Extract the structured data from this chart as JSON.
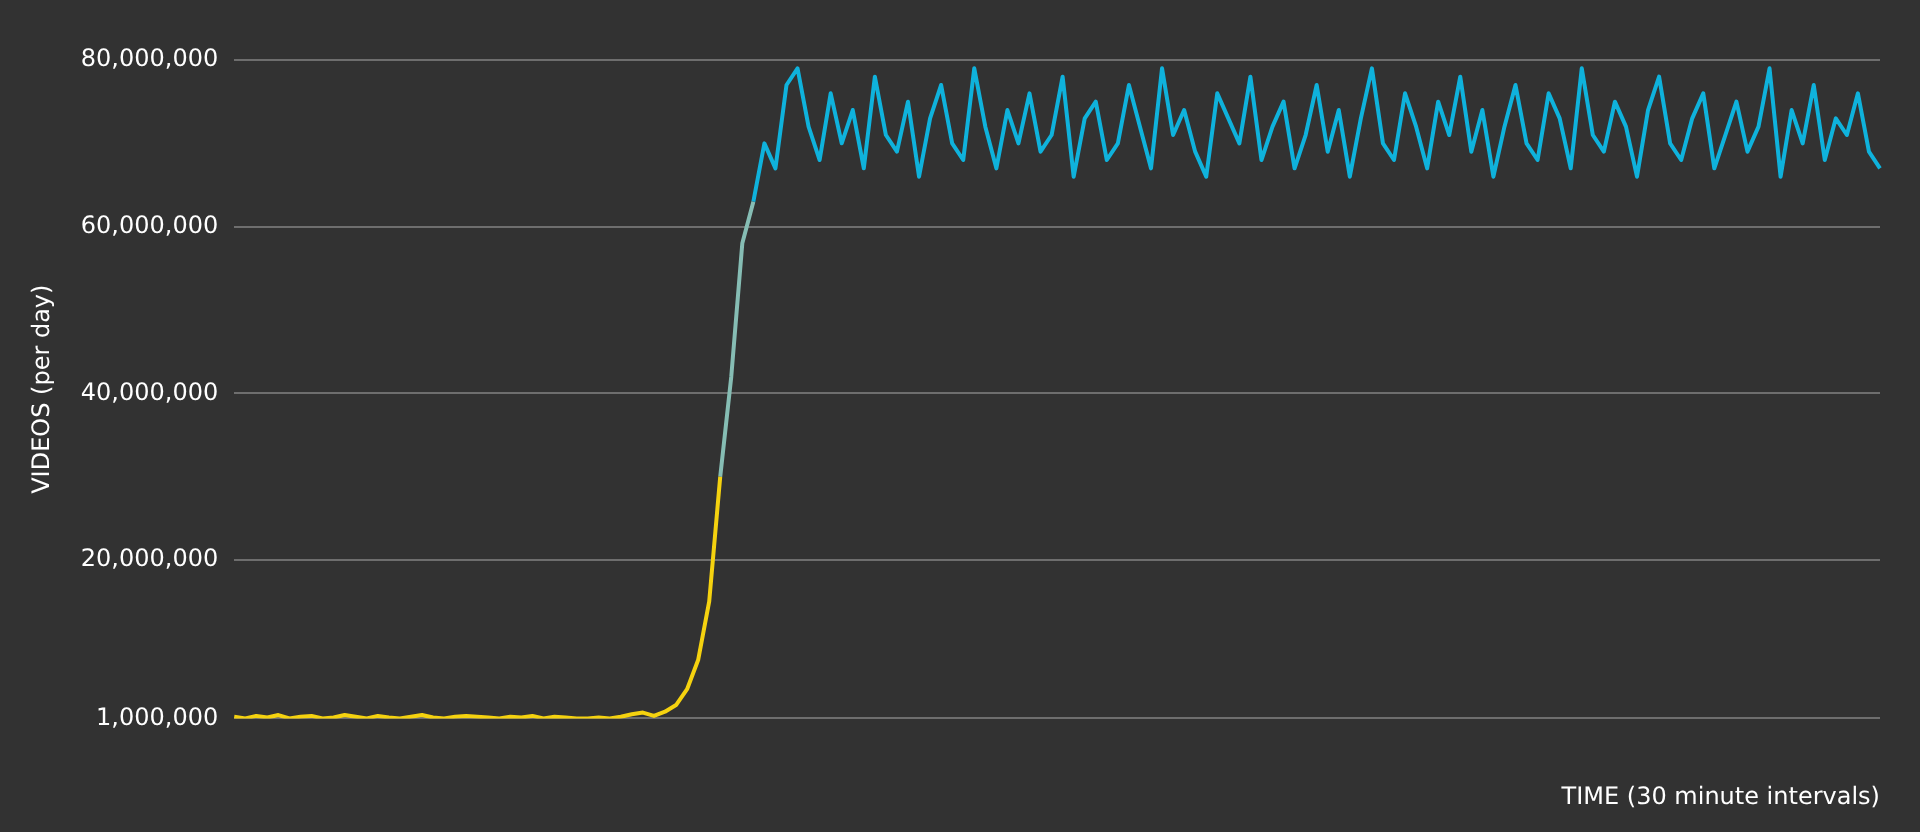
{
  "chart_data": {
    "type": "line",
    "xlabel": "TIME (30 minute intervals)",
    "ylabel": "VIDEOS (per day)",
    "categories": [
      null,
      null,
      null,
      null,
      null,
      null,
      null,
      null,
      null,
      null,
      null,
      null,
      null,
      null,
      null,
      null,
      null,
      null,
      null,
      null,
      null,
      null,
      null,
      null,
      null,
      null,
      null,
      null,
      null,
      null,
      null,
      null,
      null,
      null,
      null,
      null,
      null,
      null,
      null,
      null,
      null,
      null,
      null,
      null,
      null,
      null,
      null,
      null,
      null,
      null,
      null,
      null,
      null,
      null,
      null,
      null,
      null,
      null,
      null,
      null,
      null,
      null,
      null,
      null,
      null,
      null,
      null,
      null,
      null,
      null,
      null,
      null,
      null,
      null,
      null,
      null,
      null,
      null,
      null,
      null,
      null,
      null,
      null,
      null,
      null,
      null,
      null,
      null,
      null,
      null,
      null,
      null,
      null,
      null,
      null,
      null,
      null,
      null,
      null,
      null,
      null,
      null,
      null,
      null,
      null,
      null,
      null,
      null,
      null,
      null,
      null,
      null,
      null,
      null,
      null,
      null,
      null,
      null,
      null,
      null,
      null,
      null,
      null,
      null,
      null,
      null,
      null,
      null,
      null,
      null,
      null,
      null,
      null,
      null,
      null,
      null,
      null,
      null,
      null,
      null,
      null,
      null,
      null,
      null,
      null,
      null,
      null,
      null,
      null,
      null
    ],
    "series": [
      {
        "color": "#f5d20f",
        "values": [
          1200000,
          1000000,
          1300000,
          1100000,
          1400000,
          1000000,
          1200000,
          1300000,
          1000000,
          1100000,
          1400000,
          1200000,
          1000000,
          1300000,
          1100000,
          1000000,
          1200000,
          1400000,
          1100000,
          1000000,
          1200000,
          1300000,
          1200000,
          1100000,
          1000000,
          1200000,
          1100000,
          1300000,
          1000000,
          1200000,
          1100000,
          1000000,
          1000000,
          1100000,
          1000000,
          1200000,
          1500000,
          1700000,
          1300000,
          1800000,
          2600000,
          4500000,
          8000000,
          15000000,
          30000000,
          null,
          null,
          null,
          null,
          null,
          null,
          null,
          null,
          null,
          null,
          null,
          null,
          null,
          null,
          null,
          null,
          null,
          null,
          null,
          null,
          null,
          null,
          null,
          null,
          null,
          null,
          null,
          null,
          null,
          null,
          null,
          null,
          null,
          null,
          null,
          null,
          null,
          null,
          null,
          null,
          null,
          null,
          null,
          null,
          null,
          null,
          null,
          null,
          null,
          null,
          null,
          null,
          null,
          null,
          null,
          null,
          null,
          null,
          null,
          null,
          null,
          null,
          null,
          null,
          null,
          null,
          null,
          null,
          null,
          null,
          null,
          null,
          null,
          null,
          null,
          null,
          null,
          null,
          null,
          null,
          null,
          null,
          null,
          null,
          null,
          null,
          null,
          null,
          null,
          null,
          null,
          null,
          null,
          null,
          null,
          null,
          null,
          null,
          null,
          null,
          null,
          null,
          null,
          null,
          null
        ]
      },
      {
        "color": "#86bdb4",
        "values": [
          null,
          null,
          null,
          null,
          null,
          null,
          null,
          null,
          null,
          null,
          null,
          null,
          null,
          null,
          null,
          null,
          null,
          null,
          null,
          null,
          null,
          null,
          null,
          null,
          null,
          null,
          null,
          null,
          null,
          null,
          null,
          null,
          null,
          null,
          null,
          null,
          null,
          null,
          null,
          null,
          null,
          null,
          null,
          null,
          30000000,
          42000000,
          58000000,
          63000000,
          null,
          null,
          null,
          null,
          null,
          null,
          null,
          null,
          null,
          null,
          null,
          null,
          null,
          null,
          null,
          null,
          null,
          null,
          null,
          null,
          null,
          null,
          null,
          null,
          null,
          null,
          null,
          null,
          null,
          null,
          null,
          null,
          null,
          null,
          null,
          null,
          null,
          null,
          null,
          null,
          null,
          null,
          null,
          null,
          null,
          null,
          null,
          null,
          null,
          null,
          null,
          null,
          null,
          null,
          null,
          null,
          null,
          null,
          null,
          null,
          null,
          null,
          null,
          null,
          null,
          null,
          null,
          null,
          null,
          null,
          null,
          null,
          null,
          null,
          null,
          null,
          null,
          null,
          null,
          null,
          null,
          null,
          null,
          null,
          null,
          null,
          null,
          null,
          null,
          null,
          null,
          null,
          null,
          null,
          null,
          null,
          null,
          null,
          null,
          null,
          null,
          null
        ]
      },
      {
        "color": "#0fb2dc",
        "values": [
          null,
          null,
          null,
          null,
          null,
          null,
          null,
          null,
          null,
          null,
          null,
          null,
          null,
          null,
          null,
          null,
          null,
          null,
          null,
          null,
          null,
          null,
          null,
          null,
          null,
          null,
          null,
          null,
          null,
          null,
          null,
          null,
          null,
          null,
          null,
          null,
          null,
          null,
          null,
          null,
          null,
          null,
          null,
          null,
          null,
          null,
          null,
          63000000,
          70000000,
          67000000,
          77000000,
          79000000,
          72000000,
          68000000,
          76000000,
          70000000,
          74000000,
          67000000,
          78000000,
          71000000,
          69000000,
          75000000,
          66000000,
          73000000,
          77000000,
          70000000,
          68000000,
          79000000,
          72000000,
          67000000,
          74000000,
          70000000,
          76000000,
          69000000,
          71000000,
          78000000,
          66000000,
          73000000,
          75000000,
          68000000,
          70000000,
          77000000,
          72000000,
          67000000,
          79000000,
          71000000,
          74000000,
          69000000,
          66000000,
          76000000,
          73000000,
          70000000,
          78000000,
          68000000,
          72000000,
          75000000,
          67000000,
          71000000,
          77000000,
          69000000,
          74000000,
          66000000,
          73000000,
          79000000,
          70000000,
          68000000,
          76000000,
          72000000,
          67000000,
          75000000,
          71000000,
          78000000,
          69000000,
          74000000,
          66000000,
          72000000,
          77000000,
          70000000,
          68000000,
          76000000,
          73000000,
          67000000,
          79000000,
          71000000,
          69000000,
          75000000,
          72000000,
          66000000,
          74000000,
          78000000,
          70000000,
          68000000,
          73000000,
          76000000,
          67000000,
          71000000,
          75000000,
          69000000,
          72000000,
          79000000,
          66000000,
          74000000,
          70000000,
          77000000,
          68000000,
          73000000,
          71000000,
          76000000,
          69000000,
          67000000
        ]
      }
    ],
    "ylim": [
      1000000,
      80000000
    ],
    "yticks": [
      {
        "value": 1000000,
        "label": "1,000,000"
      },
      {
        "value": 20000000,
        "label": "20,000,000"
      },
      {
        "value": 40000000,
        "label": "40,000,000"
      },
      {
        "value": 60000000,
        "label": "60,000,000"
      },
      {
        "value": 80000000,
        "label": "80,000,000"
      }
    ],
    "grid": "y",
    "legend": false,
    "marker": "none"
  }
}
